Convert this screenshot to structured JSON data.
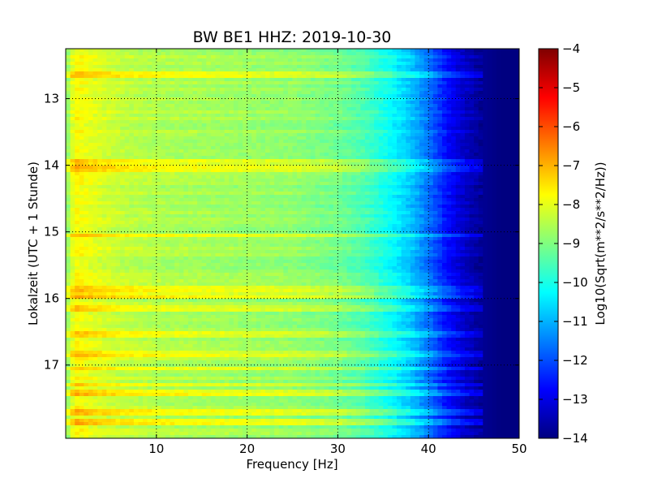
{
  "chart_data": {
    "type": "heatmap",
    "title": "BW BE1 HHZ: 2019-10-30",
    "xlabel": "Frequency [Hz]",
    "ylabel": "Lokalzeit (UTC + 1 Stunde)",
    "xlim": [
      0,
      50
    ],
    "ylim": [
      12.25,
      18.1
    ],
    "y_inverted": true,
    "x_ticks": [
      10,
      20,
      30,
      40,
      50
    ],
    "y_ticks": [
      13,
      14,
      15,
      16,
      17
    ],
    "grid": true,
    "colorbar": {
      "label": "Log10(Sqrt(m**2/s**2/Hz))",
      "range": [
        -14,
        -4
      ],
      "ticks": [
        -4,
        -5,
        -6,
        -7,
        -8,
        -9,
        -10,
        -11,
        -12,
        -13,
        -14
      ],
      "colormap": "jet"
    },
    "spectral_profile": {
      "frequency_hz": [
        0,
        1,
        3,
        6,
        10,
        15,
        20,
        25,
        30,
        33,
        36,
        38,
        40,
        42,
        44,
        46,
        48,
        50
      ],
      "log_amplitude": [
        -9.0,
        -7.7,
        -8.0,
        -8.3,
        -8.5,
        -8.6,
        -8.7,
        -8.8,
        -9.1,
        -9.5,
        -10.2,
        -10.8,
        -11.6,
        -12.6,
        -13.3,
        -13.8,
        -14.0,
        -14.0
      ]
    },
    "bright_bands_local_time": [
      12.65,
      13.95,
      14.05,
      15.05,
      15.85,
      15.95,
      16.15,
      16.55,
      16.85,
      17.05,
      17.3,
      17.4,
      17.7,
      17.85
    ]
  }
}
